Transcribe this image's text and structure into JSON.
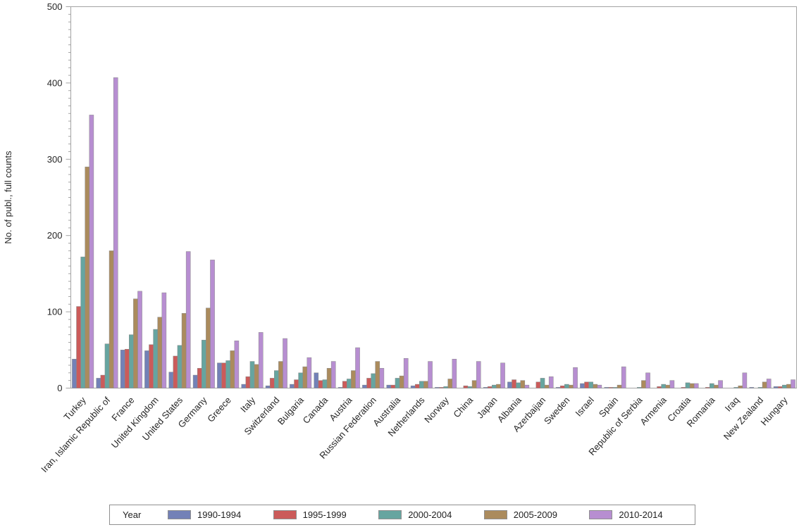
{
  "chart_data": {
    "type": "bar",
    "title": "",
    "xlabel": "",
    "ylabel": "No. of publ., full counts",
    "ylim": [
      0,
      500
    ],
    "y_major_ticks": [
      0,
      100,
      200,
      300,
      400,
      500
    ],
    "y_minor_tick_interval": 10,
    "grid": false,
    "legend_position": "bottom",
    "legend_title": "Year",
    "categories": [
      "Turkey",
      "Iran, Islamic Republic of",
      "France",
      "United Kingdom",
      "United States",
      "Germany",
      "Greece",
      "Italy",
      "Switzerland",
      "Bulgaria",
      "Canada",
      "Austria",
      "Russian Federation",
      "Australia",
      "Netherlands",
      "Norway",
      "China",
      "Japan",
      "Albania",
      "Azerbaijan",
      "Sweden",
      "Israel",
      "Spain",
      "Republic of Serbia",
      "Armenia",
      "Croatia",
      "Romania",
      "Iraq",
      "New Zealand",
      "Hungary"
    ],
    "series": [
      {
        "name": "1990-1994",
        "color": "#7381b7",
        "values": [
          38,
          13,
          50,
          49,
          21,
          17,
          33,
          5,
          3,
          5,
          20,
          1,
          4,
          4,
          3,
          1,
          0,
          1,
          8,
          0,
          1,
          6,
          1,
          0,
          0,
          0,
          0,
          0,
          1,
          2
        ]
      },
      {
        "name": "1995-1999",
        "color": "#cb5b5a",
        "values": [
          107,
          17,
          51,
          57,
          42,
          26,
          33,
          15,
          13,
          11,
          10,
          9,
          13,
          4,
          5,
          1,
          3,
          2,
          11,
          8,
          3,
          8,
          1,
          0,
          2,
          1,
          1,
          0,
          0,
          2
        ]
      },
      {
        "name": "2000-2004",
        "color": "#66a5a0",
        "values": [
          172,
          58,
          70,
          77,
          56,
          63,
          36,
          35,
          23,
          20,
          11,
          12,
          19,
          13,
          9,
          2,
          2,
          4,
          7,
          13,
          5,
          8,
          1,
          1,
          5,
          7,
          6,
          1,
          1,
          4
        ]
      },
      {
        "name": "2005-2009",
        "color": "#ab8b5d",
        "values": [
          290,
          180,
          117,
          93,
          98,
          105,
          49,
          31,
          35,
          28,
          26,
          23,
          35,
          16,
          9,
          12,
          10,
          5,
          10,
          4,
          4,
          5,
          4,
          10,
          4,
          6,
          4,
          3,
          8,
          5
        ]
      },
      {
        "name": "2010-2014",
        "color": "#b78ed1",
        "values": [
          358,
          407,
          127,
          125,
          179,
          168,
          62,
          73,
          65,
          40,
          35,
          53,
          26,
          39,
          35,
          38,
          35,
          33,
          4,
          15,
          27,
          4,
          28,
          20,
          10,
          6,
          10,
          20,
          12,
          11
        ]
      }
    ]
  },
  "colors": {
    "axis": "#a3a3a3",
    "text": "#262626",
    "legend_border": "#8f8f8f",
    "background": "#ffffff"
  }
}
